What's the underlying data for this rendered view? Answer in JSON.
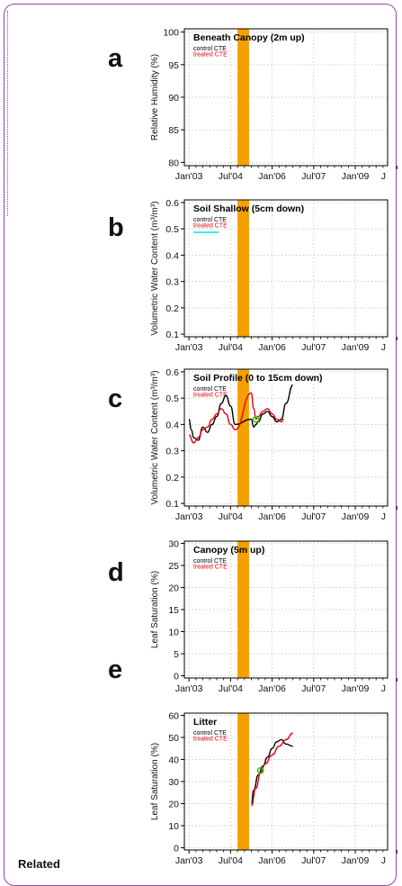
{
  "footer": {
    "related": "Related"
  },
  "colors": {
    "control": "#000000",
    "treated": "#e8000b",
    "other": "#00e5e5",
    "event": "#f5a000",
    "marker": "#22cc22"
  },
  "chart_data": [
    {
      "type": "line",
      "letter": "a",
      "title": "Beneath Canopy (2m up)",
      "ylabel": "Relative Humidity (%)",
      "xlabel": "",
      "xticks": [
        "Jan'03",
        "Jul'04",
        "Jan'06",
        "Jul'07",
        "Jan'09",
        "J"
      ],
      "yticks": [
        80,
        85,
        90,
        95,
        100
      ],
      "ylim": [
        79.5,
        100.5
      ],
      "xlim": [
        "2002-11",
        "2010-03"
      ],
      "grid": true,
      "event_band": [
        "2004-10",
        "2005-03"
      ],
      "legend": [
        {
          "name": "control CTE",
          "color": "#000000"
        },
        {
          "name": "treated CTE",
          "color": "#e8000b"
        }
      ],
      "series": []
    },
    {
      "type": "line",
      "letter": "b",
      "title": "Soil Shallow (5cm down)",
      "ylabel": "Volumetric Water Content (m³/m³)",
      "xlabel": "",
      "xticks": [
        "Jan'03",
        "Jul'04",
        "Jan'06",
        "Jul'07",
        "Jan'09",
        "J"
      ],
      "yticks": [
        0.1,
        0.2,
        0.3,
        0.4,
        0.5,
        0.6
      ],
      "ylim": [
        0.09,
        0.61
      ],
      "xlim": [
        "2002-11",
        "2010-03"
      ],
      "grid": true,
      "event_band": [
        "2004-10",
        "2005-03"
      ],
      "legend": [
        {
          "name": "control CTE",
          "color": "#000000"
        },
        {
          "name": "treated CTE",
          "color": "#e8000b"
        },
        {
          "name": "",
          "color": "#00e5e5"
        }
      ],
      "series": []
    },
    {
      "type": "line",
      "letter": "c",
      "title": "Soil Profile (0 to 15cm down)",
      "ylabel": "Volumetric Water Content (m³/m³)",
      "xlabel": "",
      "xticks": [
        "Jan'03",
        "Jul'04",
        "Jan'06",
        "Jul'07",
        "Jan'09",
        "J"
      ],
      "yticks": [
        0.1,
        0.2,
        0.3,
        0.4,
        0.5,
        0.6
      ],
      "ylim": [
        0.09,
        0.61
      ],
      "xlim": [
        "2002-11",
        "2010-03"
      ],
      "grid": true,
      "event_band": [
        "2004-10",
        "2005-03"
      ],
      "legend": [
        {
          "name": "control CTE",
          "color": "#000000"
        },
        {
          "name": "treated CTE",
          "color": "#e8000b"
        }
      ],
      "series": [
        {
          "color": "#000000",
          "x": [
            "2003-01",
            "2003-02",
            "2003-03",
            "2003-05",
            "2003-07",
            "2003-09",
            "2003-11",
            "2004-01",
            "2004-03",
            "2004-05",
            "2004-07",
            "2004-09",
            "2005-04",
            "2005-05",
            "2005-06",
            "2005-07",
            "2005-09",
            "2005-11",
            "2006-01",
            "2006-03",
            "2006-05",
            "2006-07",
            "2006-10"
          ],
          "y": [
            0.42,
            0.38,
            0.35,
            0.34,
            0.39,
            0.37,
            0.4,
            0.43,
            0.48,
            0.51,
            0.47,
            0.4,
            0.42,
            0.39,
            0.4,
            0.41,
            0.44,
            0.45,
            0.43,
            0.41,
            0.42,
            0.48,
            0.55
          ]
        },
        {
          "color": "#e8000b",
          "x": [
            "2003-01",
            "2003-03",
            "2003-05",
            "2003-07",
            "2003-09",
            "2003-11",
            "2004-01",
            "2004-03",
            "2004-05",
            "2004-07",
            "2004-09",
            "2005-04",
            "2005-05",
            "2005-06",
            "2005-07",
            "2005-09",
            "2005-11",
            "2006-01",
            "2006-03",
            "2006-05",
            "2006-06"
          ],
          "y": [
            0.36,
            0.33,
            0.35,
            0.38,
            0.39,
            0.42,
            0.44,
            0.46,
            0.44,
            0.4,
            0.38,
            0.52,
            0.46,
            0.42,
            0.43,
            0.45,
            0.46,
            0.44,
            0.42,
            0.41,
            0.42
          ]
        }
      ],
      "markers": [
        {
          "x": "2005-06",
          "y": 0.42
        }
      ]
    },
    {
      "type": "line",
      "letter": "d",
      "title": "Canopy (5m up)",
      "ylabel": "Leaf Saturation (%)",
      "xlabel": "",
      "xticks": [
        "Jan'03",
        "Jul'04",
        "Jan'06",
        "Jul'07",
        "Jan'09",
        "J"
      ],
      "yticks": [
        0,
        5,
        10,
        15,
        20,
        25,
        30
      ],
      "ylim": [
        -0.5,
        30.5
      ],
      "xlim": [
        "2002-11",
        "2010-03"
      ],
      "grid": true,
      "event_band": [
        "2004-10",
        "2005-03"
      ],
      "legend": [
        {
          "name": "control CTE",
          "color": "#000000"
        },
        {
          "name": "treated CTE",
          "color": "#e8000b"
        }
      ],
      "series": []
    },
    {
      "type": "line",
      "letter": "e",
      "title": "Litter",
      "ylabel": "Leaf Saturation (%)",
      "xlabel": "",
      "xticks": [
        "Jan'03",
        "Jul'04",
        "Jan'06",
        "Jul'07",
        "Jan'09",
        "J"
      ],
      "yticks": [
        0,
        10,
        20,
        30,
        40,
        50,
        60
      ],
      "ylim": [
        -1,
        61
      ],
      "xlim": [
        "2002-11",
        "2010-03"
      ],
      "grid": true,
      "event_band": [
        "2004-10",
        "2005-03"
      ],
      "legend": [
        {
          "name": "control CTE",
          "color": "#000000"
        },
        {
          "name": "treated CTE",
          "color": "#e8000b"
        }
      ],
      "series": [
        {
          "color": "#000000",
          "x": [
            "2005-04",
            "2005-05",
            "2005-07",
            "2005-09",
            "2005-11",
            "2006-01",
            "2006-03",
            "2006-05",
            "2006-07",
            "2006-10"
          ],
          "y": [
            20,
            26,
            33,
            37,
            41,
            45,
            48,
            49,
            47,
            46
          ]
        },
        {
          "color": "#e8000b",
          "x": [
            "2005-04",
            "2005-06",
            "2005-08",
            "2005-10",
            "2006-01",
            "2006-04",
            "2006-07",
            "2006-10"
          ],
          "y": [
            19,
            27,
            34,
            38,
            42,
            46,
            49,
            52
          ]
        }
      ],
      "markers": [
        {
          "x": "2005-08",
          "y": 35
        }
      ]
    }
  ]
}
